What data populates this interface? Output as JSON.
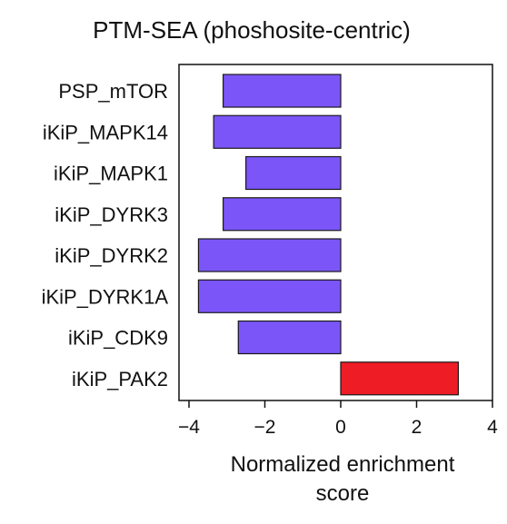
{
  "chart_data": {
    "type": "bar",
    "orientation": "horizontal",
    "title": "PTM-SEA (phoshosite-centric)",
    "xlabel_lines": [
      "Normalized enrichment",
      "score"
    ],
    "ylabel": "",
    "categories": [
      "PSP_mTOR",
      "iKiP_MAPK14",
      "iKiP_MAPK1",
      "iKiP_DYRK3",
      "iKiP_DYRK2",
      "iKiP_DYRK1A",
      "iKiP_CDK9",
      "iKiP_PAK2"
    ],
    "values": [
      -3.1,
      -3.35,
      -2.5,
      -3.1,
      -3.75,
      -3.75,
      -2.7,
      3.1
    ],
    "xlim": [
      -4.5,
      4.0
    ],
    "xticks": [
      -4,
      -2,
      0,
      2,
      4
    ],
    "xtick_labels": [
      "−4",
      "−2",
      "0",
      "2",
      "4"
    ],
    "grid": false,
    "colors": {
      "negative": "#7b55f7",
      "positive": "#ee1c25",
      "edge": "#1a1a1a"
    }
  }
}
